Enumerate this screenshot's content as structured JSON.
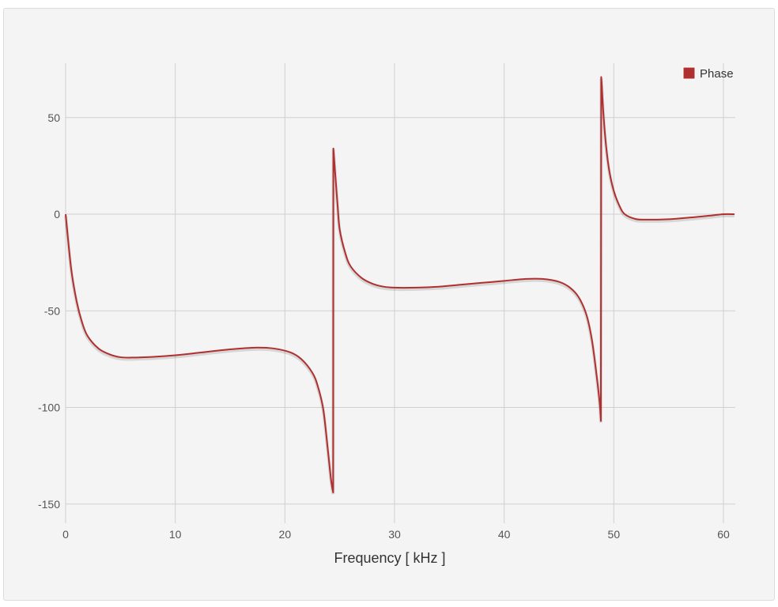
{
  "chart_data": {
    "type": "line",
    "title": "",
    "xlabel": "Frequency [ kHz ]",
    "ylabel": "",
    "xlim": [
      0,
      61
    ],
    "ylim": [
      -155,
      78
    ],
    "x_ticks": [
      "0",
      "10",
      "20",
      "30",
      "40",
      "50",
      "60"
    ],
    "y_ticks": [
      "50",
      "0",
      "-50",
      "-100",
      "-150"
    ],
    "grid": true,
    "legend_position": "top-right",
    "series": [
      {
        "name": "Phase",
        "color": "#b03030",
        "x": [
          0,
          0.5,
          1,
          1.5,
          2,
          3,
          4,
          5,
          6,
          8,
          10,
          12,
          14,
          16,
          17.5,
          19,
          20.5,
          21.5,
          22.5,
          23,
          23.5,
          23.9,
          24.2,
          24.4,
          24.42,
          24.45,
          24.6,
          24.8,
          25,
          25.5,
          26,
          27,
          28,
          29,
          30,
          32,
          34,
          36,
          38,
          40,
          42,
          43.5,
          45,
          46,
          46.8,
          47.5,
          48,
          48.4,
          48.7,
          48.82,
          48.85,
          48.9,
          49.05,
          49.3,
          49.6,
          50,
          50.5,
          51,
          52,
          53,
          54,
          55,
          56,
          57,
          58,
          59,
          60,
          61
        ],
        "y": [
          0,
          -28,
          -45,
          -56,
          -63,
          -69.5,
          -72.5,
          -74,
          -74.2,
          -73.8,
          -73,
          -71.8,
          -70.5,
          -69.5,
          -69,
          -69.5,
          -71.5,
          -75,
          -82,
          -89,
          -101,
          -121,
          -137,
          -144,
          34,
          32,
          20,
          5,
          -8,
          -20,
          -27,
          -33,
          -36,
          -37.5,
          -38,
          -38,
          -37.5,
          -36.5,
          -35.5,
          -34.5,
          -33.5,
          -33.5,
          -35,
          -38,
          -43,
          -52,
          -65,
          -82,
          -97,
          -107,
          71,
          67,
          52,
          35,
          22,
          12,
          4.5,
          0,
          -2.5,
          -2.8,
          -2.8,
          -2.6,
          -2.2,
          -1.7,
          -1.2,
          -0.6,
          0,
          0
        ]
      }
    ]
  }
}
